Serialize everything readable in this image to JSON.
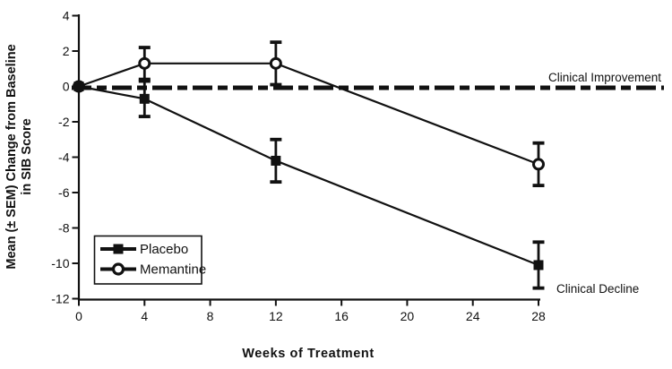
{
  "chart_data": {
    "type": "line",
    "title": "",
    "xlabel": "Weeks of Treatment",
    "ylabel_line1": "Mean (± SEM) Change from Baseline",
    "ylabel_line2": "in SIB Score",
    "xlim": [
      0,
      28
    ],
    "ylim": [
      -12,
      4
    ],
    "x_ticks": [
      0,
      4,
      8,
      12,
      16,
      20,
      24,
      28
    ],
    "y_ticks": [
      4,
      2,
      0,
      -2,
      -4,
      -6,
      -8,
      -10,
      -12
    ],
    "grid": false,
    "x": [
      0,
      4,
      12,
      28
    ],
    "series": [
      {
        "name": "Placebo",
        "marker": "filled-square",
        "values": [
          0,
          -0.7,
          -4.2,
          -10.1
        ],
        "sem": [
          0,
          1.0,
          1.2,
          1.3
        ]
      },
      {
        "name": "Memantine",
        "marker": "open-circle",
        "values": [
          0,
          1.3,
          1.3,
          -4.4
        ],
        "sem": [
          0,
          0.9,
          1.2,
          1.2
        ]
      }
    ],
    "zero_baseline": {
      "value": 0,
      "style": "thick-dashed",
      "label_above": "Clinical Improvement",
      "label_below": "Clinical Decline"
    },
    "annotations": [
      {
        "text": "Clinical Improvement"
      },
      {
        "text": "Clinical Decline"
      }
    ],
    "legend": {
      "position": "lower-left",
      "entries": [
        "Placebo",
        "Memantine"
      ]
    },
    "colors": {
      "line": "#111111",
      "background": "#ffffff",
      "marker_fill": "#111111",
      "open_marker_fill": "#ffffff"
    }
  }
}
